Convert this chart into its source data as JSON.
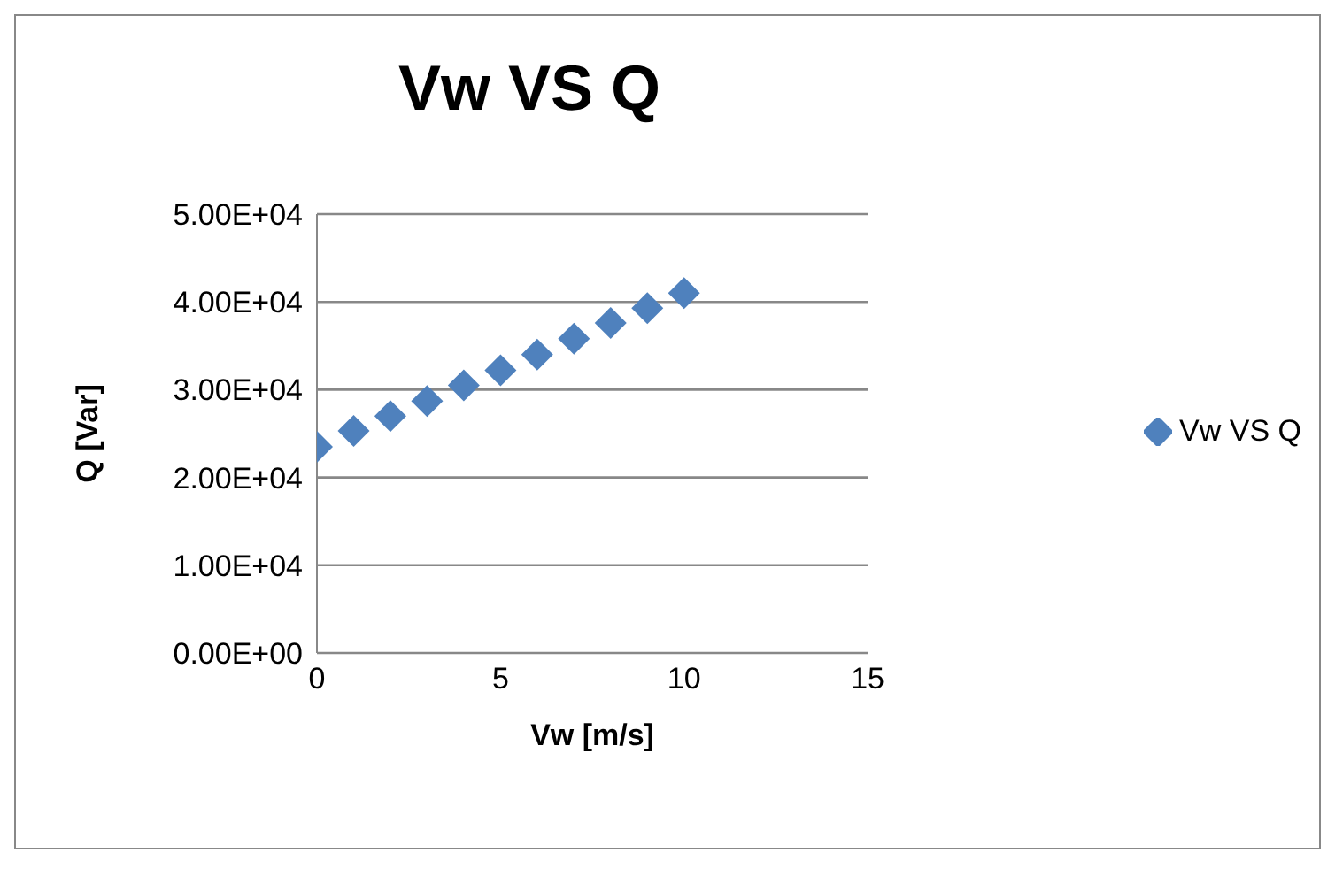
{
  "chart_data": {
    "type": "scatter",
    "title": "Vw VS Q",
    "xlabel": "Vw [m/s]",
    "ylabel": "Q [Var]",
    "x": [
      0,
      1,
      2,
      3,
      4,
      5,
      6,
      7,
      8,
      9,
      10
    ],
    "series": [
      {
        "name": "Vw VS Q",
        "color": "#4f81bd",
        "values": [
          23500,
          25300,
          27000,
          28700,
          30500,
          32200,
          34000,
          35800,
          37600,
          39300,
          41000
        ]
      }
    ],
    "xlim": [
      0,
      15
    ],
    "xticks": [
      0,
      5,
      10,
      15
    ],
    "ylim": [
      0,
      50000
    ],
    "yticks": [
      {
        "value": 0,
        "label": "0.00E+00"
      },
      {
        "value": 10000,
        "label": "1.00E+04"
      },
      {
        "value": 20000,
        "label": "2.00E+04"
      },
      {
        "value": 30000,
        "label": "3.00E+04"
      },
      {
        "value": 40000,
        "label": "4.00E+04"
      },
      {
        "value": 50000,
        "label": "5.00E+04"
      }
    ],
    "grid": "y",
    "legend": "right",
    "marker": "diamond"
  }
}
